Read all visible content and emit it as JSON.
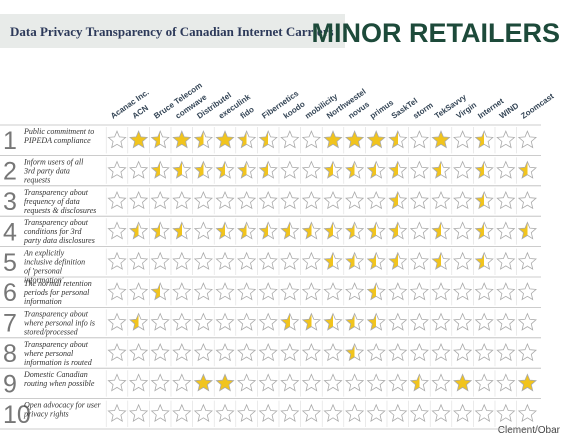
{
  "header": {
    "title": "Data Privacy Transparency of Canadian Internet Carriers",
    "section": "MINOR RETAILERS"
  },
  "carriers": [
    "Acanac Inc.",
    "ACN",
    "Bruce Telecom",
    "comwave",
    "Distributel",
    "execulink",
    "fido",
    "Fibernetics",
    "koodo",
    "mobilicity",
    "Northwestel",
    "novus",
    "primus",
    "SaskTel",
    "storm",
    "TekSavvy",
    "Virgin",
    "Internet",
    "WIND",
    "Zoomcast"
  ],
  "criteria": [
    {
      "number": "1",
      "label": "Public commitment to PIPEDA compliance",
      "ratings": [
        0,
        1,
        0.5,
        1,
        0.5,
        1,
        0.5,
        0.5,
        0,
        0,
        1,
        1,
        1,
        0.5,
        0,
        1,
        0,
        0.5,
        0,
        0
      ]
    },
    {
      "number": "2",
      "label": "Inform users of all 3rd party data requests",
      "ratings": [
        0,
        0,
        0.5,
        0.5,
        0.5,
        0.5,
        0.5,
        0.5,
        0,
        0,
        0.5,
        0.5,
        0.5,
        0.5,
        0,
        0.5,
        0,
        0.5,
        0,
        0.5
      ]
    },
    {
      "number": "3",
      "label": "Transparency about frequency of data requests & disclosures",
      "ratings": [
        0,
        0,
        0,
        0,
        0,
        0,
        0,
        0,
        0,
        0,
        0,
        0,
        0,
        0.5,
        0,
        0,
        0,
        0.5,
        0,
        0
      ]
    },
    {
      "number": "4",
      "label": "Transparency about conditions for 3rd party data disclosures",
      "ratings": [
        0,
        0.5,
        0.5,
        0.5,
        0,
        0.5,
        0.5,
        0.5,
        0.5,
        0.5,
        0.5,
        0.5,
        0.5,
        0.5,
        0,
        0.5,
        0,
        0.5,
        0,
        0.5
      ]
    },
    {
      "number": "5",
      "label": "An explicitly inclusive definition of 'personal information'",
      "ratings": [
        0,
        0,
        0,
        0,
        0,
        0,
        0,
        0,
        0,
        0,
        0.5,
        0.5,
        0.5,
        0.5,
        0,
        0.5,
        0,
        0.5,
        0,
        0
      ]
    },
    {
      "number": "6",
      "label": "The normal retention periods for personal information",
      "ratings": [
        0,
        0,
        0.5,
        0,
        0,
        0,
        0,
        0,
        0,
        0,
        0,
        0,
        0.5,
        0,
        0,
        0,
        0,
        0,
        0,
        0
      ]
    },
    {
      "number": "7",
      "label": "Transparency about where personal info is stored/processed",
      "ratings": [
        0,
        0.5,
        0,
        0,
        0,
        0,
        0,
        0,
        0.5,
        0.5,
        0.5,
        0.5,
        0.5,
        0,
        0,
        0,
        0,
        0,
        0,
        0
      ]
    },
    {
      "number": "8",
      "label": "Transparency about where personal information is routed",
      "ratings": [
        0,
        0,
        0,
        0,
        0,
        0,
        0,
        0,
        0,
        0,
        0,
        0.5,
        0,
        0,
        0,
        0,
        0,
        0,
        0,
        0
      ]
    },
    {
      "number": "9",
      "label": "Domestic Canadian routing when possible",
      "ratings": [
        0,
        0,
        0,
        0,
        1,
        1,
        0,
        0,
        0,
        0,
        0,
        0,
        0,
        0,
        0.5,
        0,
        1,
        0,
        0,
        1
      ]
    },
    {
      "number": "10",
      "label": "Open advocacy for user privacy rights",
      "ratings": [
        0,
        0,
        0,
        0,
        0,
        0,
        0,
        0,
        0,
        0,
        0,
        0,
        0,
        0,
        0,
        0,
        0,
        0,
        0,
        0
      ]
    }
  ],
  "credit": "Clement/Obar"
}
